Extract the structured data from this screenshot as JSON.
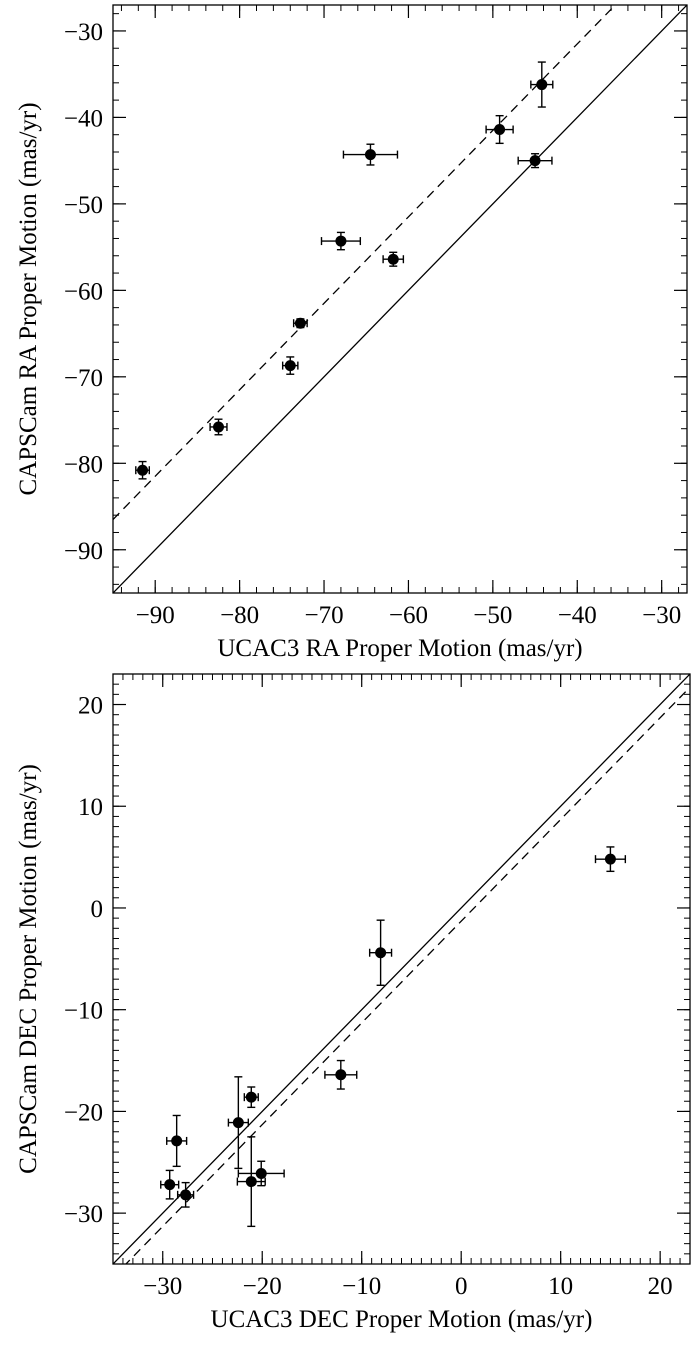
{
  "chart_data": [
    {
      "type": "scatter",
      "xlabel": "UCAC3 RA Proper Motion (mas/yr)",
      "ylabel": "CAPSCam RA Proper Motion (mas/yr)",
      "xlim": [
        -95,
        -27
      ],
      "ylim": [
        -95,
        -27
      ],
      "xticks": [
        -90,
        -80,
        -70,
        -60,
        -50,
        -40,
        -30
      ],
      "yticks": [
        -90,
        -80,
        -70,
        -60,
        -50,
        -40,
        -30
      ],
      "minor_step": 2,
      "reference_lines": [
        {
          "style": "solid",
          "slope": 1,
          "intercept": 0
        },
        {
          "style": "dashed",
          "slope": 1,
          "intercept": 8.5
        }
      ],
      "points": [
        {
          "x": -91.5,
          "y": -80.8,
          "xerr": 0.8,
          "yerr": 1.0
        },
        {
          "x": -82.5,
          "y": -75.8,
          "xerr": 1.0,
          "yerr": 0.9
        },
        {
          "x": -74.0,
          "y": -68.7,
          "xerr": 0.9,
          "yerr": 1.0
        },
        {
          "x": -72.8,
          "y": -63.8,
          "xerr": 0.8,
          "yerr": 0.5
        },
        {
          "x": -68.0,
          "y": -54.3,
          "xerr": 2.3,
          "yerr": 1.0
        },
        {
          "x": -64.5,
          "y": -44.3,
          "xerr": 3.2,
          "yerr": 1.2
        },
        {
          "x": -61.8,
          "y": -56.4,
          "xerr": 1.2,
          "yerr": 0.8
        },
        {
          "x": -49.2,
          "y": -41.4,
          "xerr": 1.6,
          "yerr": 1.6
        },
        {
          "x": -45.0,
          "y": -45.0,
          "xerr": 2.0,
          "yerr": 0.8
        },
        {
          "x": -44.2,
          "y": -36.2,
          "xerr": 1.3,
          "yerr": 2.6
        }
      ]
    },
    {
      "type": "scatter",
      "xlabel": "UCAC3 DEC Proper Motion (mas/yr)",
      "ylabel": "CAPSCam DEC Proper Motion (mas/yr)",
      "xlim": [
        -35,
        23
      ],
      "ylim": [
        -35,
        23
      ],
      "xticks": [
        -30,
        -20,
        -10,
        0,
        10,
        20
      ],
      "yticks": [
        -30,
        -20,
        -10,
        0,
        10,
        20
      ],
      "minor_step": 1,
      "reference_lines": [
        {
          "style": "solid",
          "slope": 1,
          "intercept": 0
        },
        {
          "style": "dashed",
          "slope": 1,
          "intercept": -1.3
        }
      ],
      "points": [
        {
          "x": -29.3,
          "y": -27.2,
          "xerr": 0.9,
          "yerr": 1.4
        },
        {
          "x": -28.6,
          "y": -22.9,
          "xerr": 1.0,
          "yerr": 2.5
        },
        {
          "x": -27.7,
          "y": -28.2,
          "xerr": 0.8,
          "yerr": 1.2
        },
        {
          "x": -22.4,
          "y": -21.1,
          "xerr": 1.0,
          "yerr": 4.5
        },
        {
          "x": -21.1,
          "y": -18.6,
          "xerr": 0.7,
          "yerr": 1.0
        },
        {
          "x": -21.1,
          "y": -26.9,
          "xerr": 1.4,
          "yerr": 4.4
        },
        {
          "x": -20.1,
          "y": -26.1,
          "xerr": 2.3,
          "yerr": 1.2
        },
        {
          "x": -12.1,
          "y": -16.4,
          "xerr": 1.6,
          "yerr": 1.4
        },
        {
          "x": -8.1,
          "y": -4.4,
          "xerr": 1.1,
          "yerr": 3.2
        },
        {
          "x": 15.0,
          "y": 4.8,
          "xerr": 1.5,
          "yerr": 1.2
        }
      ]
    }
  ]
}
